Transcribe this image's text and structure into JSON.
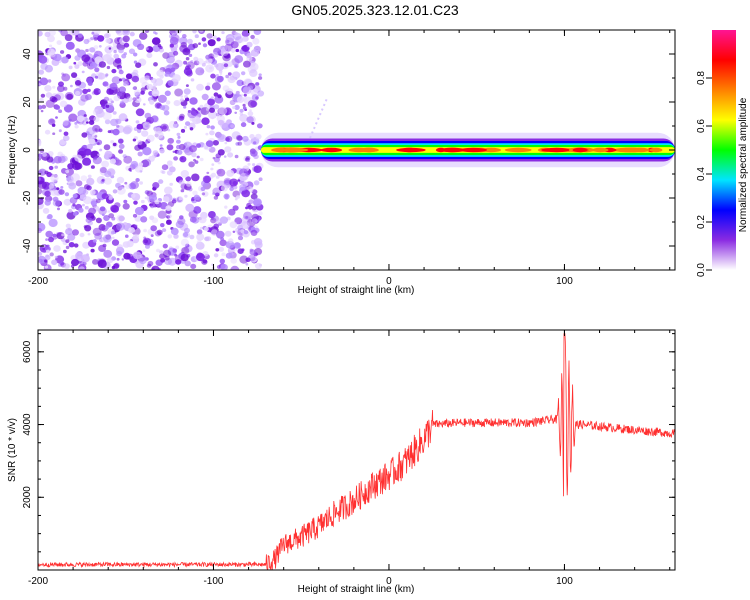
{
  "title": "GN05.2025.323.12.01.C23",
  "chart_data": [
    {
      "type": "heatmap",
      "xlabel": "Height of straight line (km)",
      "ylabel": "Frequency (Hz)",
      "xlim": [
        -200,
        163
      ],
      "ylim": [
        -50,
        50
      ],
      "xticks": [
        -200,
        -100,
        0,
        100
      ],
      "xtick_labels": [
        "-200",
        "-100",
        "0",
        "100"
      ],
      "yticks": [
        -40,
        -20,
        0,
        20,
        40
      ],
      "ytick_labels": [
        "-40",
        "-20",
        "0",
        "20",
        "40"
      ],
      "noise_region_x": [
        -200,
        -73
      ],
      "signal_band": {
        "x_start": -73,
        "x_end": 163,
        "frequency": 0,
        "halfwidth": 3
      },
      "colorbar": {
        "label": "Normalized spectral amplitude",
        "range": [
          0,
          1
        ],
        "ticks": [
          0.0,
          0.2,
          0.4,
          0.6,
          0.8
        ],
        "tick_labels": [
          "0.0",
          "0.2",
          "0.4",
          "0.6",
          "0.8"
        ],
        "colors": [
          "#ffffff",
          "#8a2be2",
          "#0000ff",
          "#00e5ff",
          "#00ff00",
          "#ffff00",
          "#ff8000",
          "#ff0000",
          "#ff1493"
        ]
      }
    },
    {
      "type": "line",
      "xlabel": "Height of straight line (km)",
      "ylabel": "SNR (10 * v/v)",
      "xlim": [
        -200,
        163
      ],
      "ylim": [
        0,
        6600
      ],
      "xticks": [
        -200,
        -100,
        0,
        100
      ],
      "xtick_labels": [
        "-200",
        "-100",
        "0",
        "100"
      ],
      "yticks": [
        2000,
        4000,
        6000
      ],
      "ytick_labels": [
        "2000",
        "4000",
        "6000"
      ],
      "series": [
        {
          "name": "SNR",
          "color": "#ff3030",
          "points": [
            [
              -200,
              150
            ],
            [
              -70,
              150
            ],
            [
              -65,
              300
            ],
            [
              -60,
              700
            ],
            [
              -50,
              900
            ],
            [
              -40,
              1200
            ],
            [
              -30,
              1600
            ],
            [
              -20,
              1900
            ],
            [
              -10,
              2300
            ],
            [
              0,
              2600
            ],
            [
              10,
              3000
            ],
            [
              20,
              3600
            ],
            [
              25,
              4000
            ],
            [
              40,
              4050
            ],
            [
              60,
              4050
            ],
            [
              80,
              4050
            ],
            [
              95,
              4150
            ],
            [
              100,
              4000
            ],
            [
              110,
              4000
            ],
            [
              120,
              3950
            ],
            [
              140,
              3850
            ],
            [
              163,
              3750
            ]
          ]
        }
      ]
    }
  ]
}
